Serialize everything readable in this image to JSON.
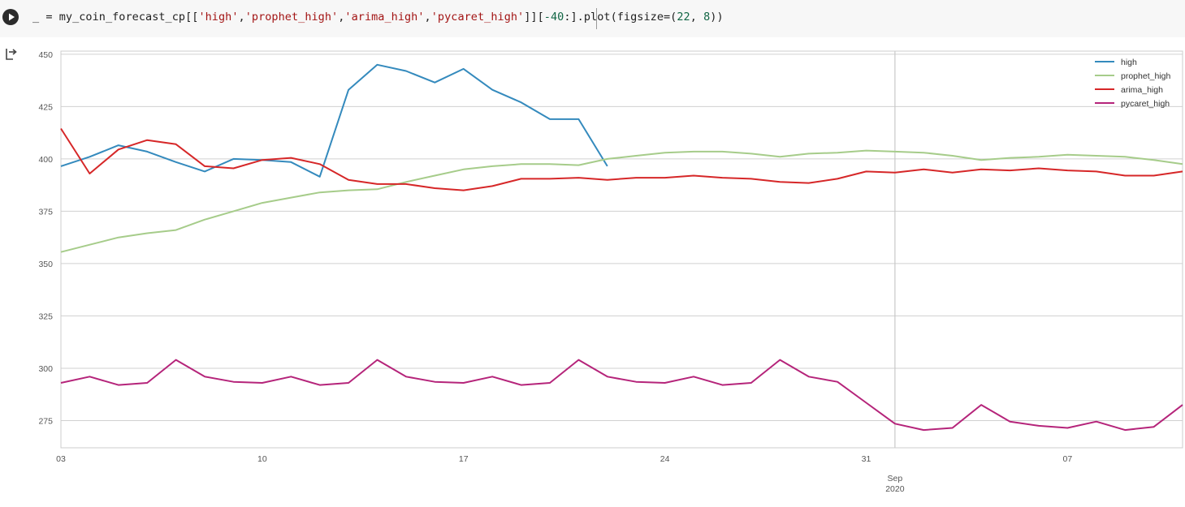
{
  "cell": {
    "code_prefix": "_ = my_coin_forecast_cp[[",
    "code_str1": "'high'",
    "code_c1": ",",
    "code_str2": "'prophet_high'",
    "code_c2": ",",
    "code_str3": "'arima_high'",
    "code_c3": ",",
    "code_str4": "'pycaret_high'",
    "code_mid": "]][",
    "code_num1": "-40",
    "code_mid2": ":].plot(figsize=(",
    "code_num2": "22",
    "code_c4": ", ",
    "code_num3": "8",
    "code_end": "))",
    "run_icon": "play-icon",
    "output_icon": "output-arrow-icon"
  },
  "chart_data": {
    "type": "line",
    "x_unit": "day",
    "x": [
      "2020-08-03",
      "2020-08-04",
      "2020-08-05",
      "2020-08-06",
      "2020-08-07",
      "2020-08-08",
      "2020-08-09",
      "2020-08-10",
      "2020-08-11",
      "2020-08-12",
      "2020-08-13",
      "2020-08-14",
      "2020-08-15",
      "2020-08-16",
      "2020-08-17",
      "2020-08-18",
      "2020-08-19",
      "2020-08-20",
      "2020-08-21",
      "2020-08-22",
      "2020-08-23",
      "2020-08-24",
      "2020-08-25",
      "2020-08-26",
      "2020-08-27",
      "2020-08-28",
      "2020-08-29",
      "2020-08-30",
      "2020-08-31",
      "2020-09-01",
      "2020-09-02",
      "2020-09-03",
      "2020-09-04",
      "2020-09-05",
      "2020-09-06",
      "2020-09-07",
      "2020-09-08",
      "2020-09-09",
      "2020-09-10",
      "2020-09-11"
    ],
    "xtick_labels": [
      {
        "date": "2020-08-03",
        "label": "03"
      },
      {
        "date": "2020-08-10",
        "label": "10"
      },
      {
        "date": "2020-08-17",
        "label": "17"
      },
      {
        "date": "2020-08-24",
        "label": "24"
      },
      {
        "date": "2020-08-31",
        "label": "31"
      },
      {
        "date": "2020-09-07",
        "label": "07"
      }
    ],
    "major_tick": {
      "date": "2020-09-01",
      "label": "Sep",
      "sublabel": "2020"
    },
    "yticks": [
      275,
      300,
      325,
      350,
      375,
      400,
      425,
      450
    ],
    "ylim": [
      262,
      451.5
    ],
    "grid": true,
    "legend_position": "top-right",
    "series": [
      {
        "name": "high",
        "color": "#348abd",
        "values": [
          396.5,
          401,
          406.5,
          403.5,
          398.5,
          394,
          400,
          399.5,
          398.5,
          391.5,
          433,
          445,
          442,
          436.5,
          443,
          433,
          427,
          419,
          419,
          396.5,
          null,
          null,
          null,
          null,
          null,
          null,
          null,
          null,
          null,
          null,
          null,
          null,
          null,
          null,
          null,
          null,
          null,
          null,
          null,
          null
        ]
      },
      {
        "name": "prophet_high",
        "color": "#a6cc8a",
        "values": [
          355.5,
          359,
          362.5,
          364.5,
          366,
          371,
          375,
          379,
          381.5,
          384,
          385,
          385.5,
          389,
          392,
          395,
          396.5,
          397.5,
          397.5,
          397,
          400,
          401.5,
          403,
          403.5,
          403.5,
          402.5,
          401,
          402.5,
          403,
          404,
          403.5,
          403,
          401.5,
          399.5,
          400.5,
          401,
          402,
          401.5,
          401,
          399.5,
          397.5
        ]
      },
      {
        "name": "arima_high",
        "color": "#d62728",
        "values": [
          414.5,
          393,
          404.5,
          409,
          407,
          396.5,
          395.5,
          399.5,
          400.5,
          397.5,
          390,
          388,
          388,
          386,
          385,
          387,
          390.5,
          390.5,
          391,
          390,
          391,
          391,
          392,
          391,
          390.5,
          389,
          388.5,
          390.5,
          394,
          393.5,
          395,
          393.5,
          395,
          394.5,
          395.5,
          394.5,
          394,
          392,
          392,
          394
        ]
      },
      {
        "name": "pycaret_high",
        "color": "#b5247a",
        "values": [
          293,
          296,
          292,
          293,
          304,
          296,
          293.5,
          293,
          296,
          292,
          293,
          304,
          296,
          293.5,
          293,
          296,
          292,
          293,
          304,
          296,
          293.5,
          293,
          296,
          292,
          293,
          304,
          296,
          293.5,
          283.5,
          273.5,
          270.5,
          271.5,
          282.5,
          274.5,
          272.5,
          271.5,
          274.5,
          270.5,
          272,
          282.5
        ]
      }
    ]
  }
}
